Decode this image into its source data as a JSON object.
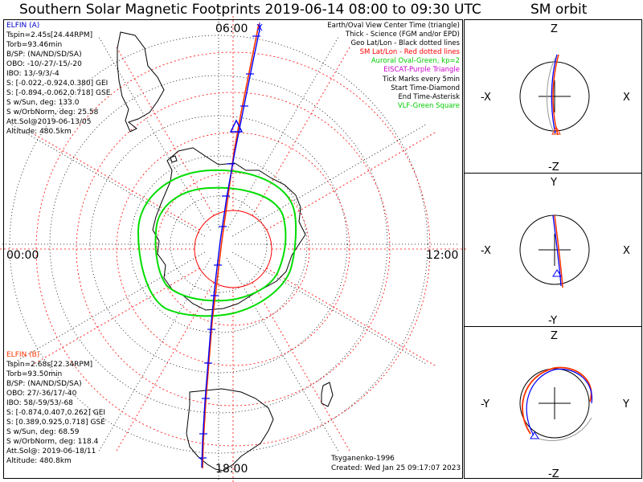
{
  "header": {
    "main_title": "Southern Solar Magnetic Footprints 2019-06-14 08:00 to 09:30 UTC",
    "orbit_title": "SM orbit"
  },
  "clock_labels": {
    "top": "06:00",
    "left": "00:00",
    "right": "12:00",
    "bottom": "18:00"
  },
  "elfin_a": {
    "color": "#0000cc",
    "lines": [
      "ELFIN (A)",
      "Tspin=2.45s[24.44RPM]",
      "Torb=93.46min",
      "B/SP: (NA/ND/SD/SA)",
      "OBO: -10/-27/-15/-20",
      "IBO: 13/-9/3/-4",
      "S: [-0.022,-0.924,0.380] GEI",
      "S: [-0.894,-0.062,0.718] GSE",
      "S w/Sun, deg: 133.0",
      "S w/OrbNorm, deg: 25.58",
      "Att.Sol@2019-06-13/05",
      "Altitude: 480.5km"
    ]
  },
  "elfin_b": {
    "color": "#ff3300",
    "lines": [
      "ELFIN (B)",
      "Tspin=2.68s[22.34RPM]",
      "Torb=93.50min",
      "B/SP: (NA/ND/SD/SA)",
      "OBO: 27/-36/17/-40",
      "IBO: 58/-59/53/-68",
      "S: [-0.874,0.407,0.262] GEI",
      "S: [0.389,0.925,0.718] GSE",
      "S w/Sun, deg: 68.59",
      "S w/OrbNorm, deg: 118.4",
      "Att.Sol@: 2019-06-18/11",
      "Altitude: 480.8km"
    ]
  },
  "legend": [
    {
      "text": "Earth/Oval View Center Time (triangle)",
      "color": "#000000"
    },
    {
      "text": "Thick - Science (FGM and/or EPD)",
      "color": "#000000"
    },
    {
      "text": "Geo Lat/Lon - Black dotted lines",
      "color": "#000000"
    },
    {
      "text": "SM Lat/Lon - Red dotted lines",
      "color": "#ff0000"
    },
    {
      "text": "Auroral Oval-Green, kp=2",
      "color": "#00cc00"
    },
    {
      "text": "EISCAT-Purple Triangle",
      "color": "#cc00cc"
    },
    {
      "text": "Tick Marks every 5min",
      "color": "#000000"
    },
    {
      "text": "Start Time-Diamond",
      "color": "#000000"
    },
    {
      "text": "End Time-Asterisk",
      "color": "#000000"
    },
    {
      "text": "VLF-Green Square",
      "color": "#00cc00"
    }
  ],
  "footer": {
    "model": "Tsyganenko-1996",
    "created": "Created: Wed Jan 25 09:17:07 2023"
  },
  "panels": [
    {
      "top": "Z",
      "bottom": "-Z",
      "left": "-X",
      "right": "X"
    },
    {
      "top": "Y",
      "bottom": "-Y",
      "left": "-X",
      "right": "X"
    },
    {
      "top": "Z",
      "bottom": "-Z",
      "left": "-Y",
      "right": "Y"
    }
  ],
  "colors": {
    "elfin_a": "#0000ff",
    "elfin_b": "#ff3300",
    "oval": "#00dd00",
    "sm_grid": "#ff0000",
    "geo_grid": "#000000",
    "coast": "#000000"
  }
}
